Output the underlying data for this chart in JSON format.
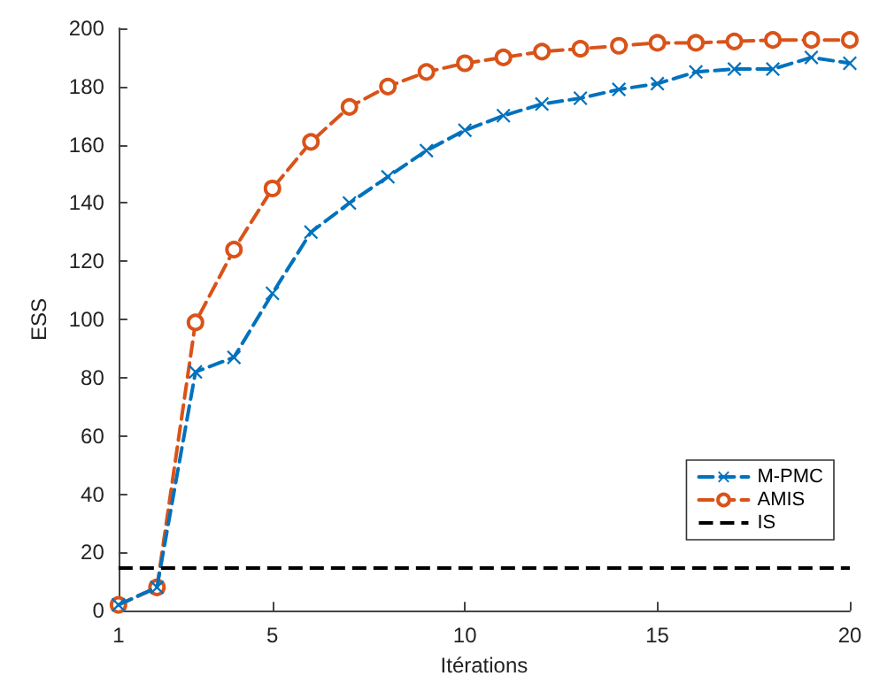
{
  "chart_data": {
    "type": "line",
    "xlabel": "Itérations",
    "ylabel": "ESS",
    "x": [
      1,
      2,
      3,
      4,
      5,
      6,
      7,
      8,
      9,
      10,
      11,
      12,
      13,
      14,
      15,
      16,
      17,
      18,
      19,
      20
    ],
    "series": [
      {
        "name": "M-PMC",
        "color": "#0072bd",
        "marker": "cross",
        "values": [
          2,
          8,
          82,
          87,
          109,
          130,
          140,
          149,
          158,
          165,
          170,
          174,
          176,
          179,
          181,
          185,
          186,
          186,
          190,
          188
        ]
      },
      {
        "name": "AMIS",
        "color": "#d95319",
        "marker": "circle",
        "values": [
          2,
          8,
          99,
          124,
          145,
          161,
          173,
          180,
          185,
          188,
          190,
          192,
          193,
          194,
          195,
          195,
          195.5,
          196,
          196,
          196
        ]
      }
    ],
    "ref_lines": [
      {
        "axis": "y",
        "value": 15,
        "label": "IS",
        "color": "#000000",
        "line_style": "dashed"
      }
    ],
    "xlim": [
      1,
      20
    ],
    "xticks": [
      1,
      5,
      10,
      15,
      20
    ],
    "ylim": [
      0,
      200
    ],
    "yticks": [
      0,
      20,
      40,
      60,
      80,
      100,
      120,
      140,
      160,
      180,
      200
    ],
    "line_style": "dashed",
    "grid": false,
    "legend": "bottom right"
  }
}
